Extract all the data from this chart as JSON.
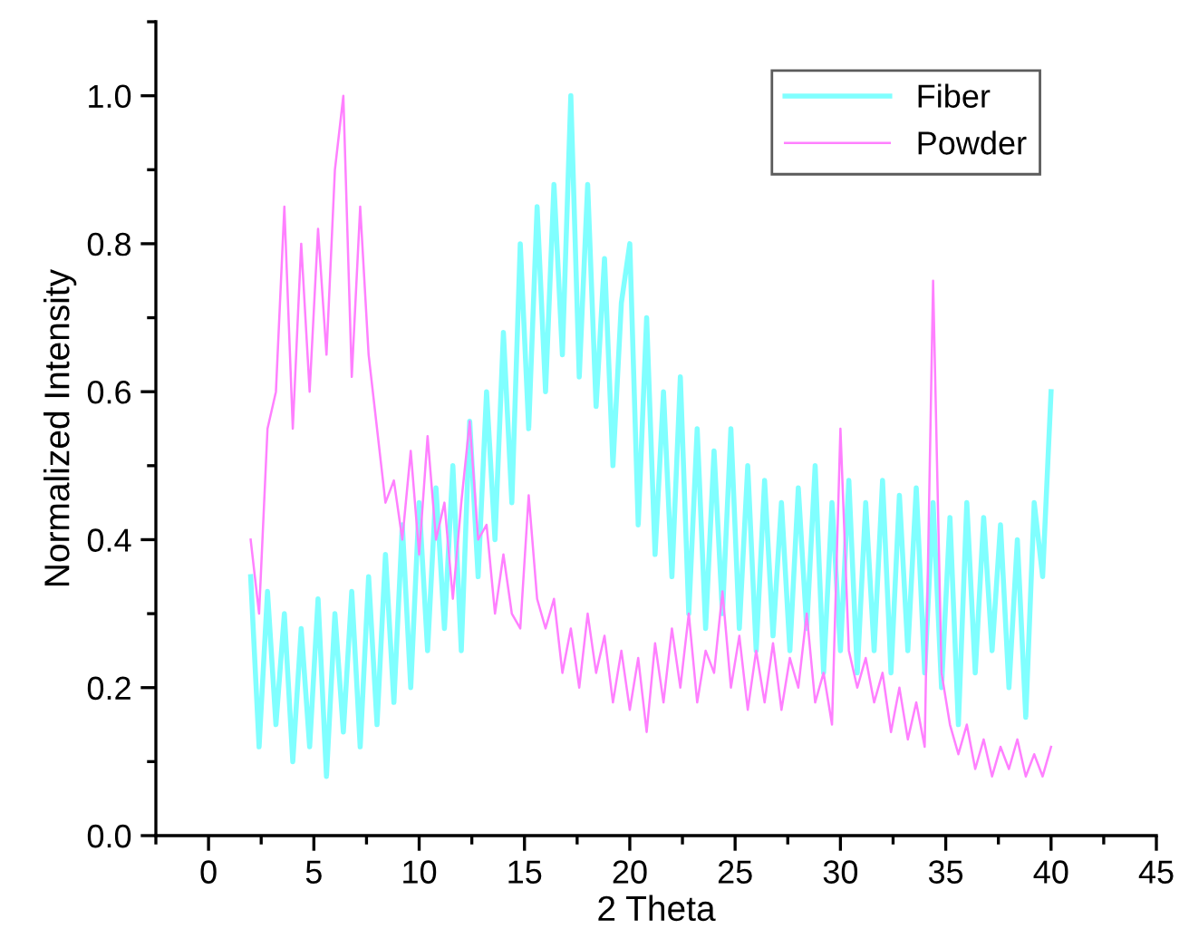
{
  "chart_data": {
    "type": "line",
    "xlabel": "2 Theta",
    "ylabel": "Normalized Intensity",
    "xlim": [
      -2.5,
      45
    ],
    "ylim": [
      0,
      1.1
    ],
    "xticks": [
      {
        "value": -2.5,
        "label": null
      },
      0,
      {
        "value": 2.5,
        "label": null
      },
      5,
      {
        "value": 7.5,
        "label": null
      },
      10,
      {
        "value": 12.5,
        "label": null
      },
      15,
      {
        "value": 17.5,
        "label": null
      },
      20,
      {
        "value": 22.5,
        "label": null
      },
      25,
      {
        "value": 27.5,
        "label": null
      },
      30,
      {
        "value": 32.5,
        "label": null
      },
      35,
      {
        "value": 37.5,
        "label": null
      },
      40,
      {
        "value": 42.5,
        "label": null
      },
      45
    ],
    "yticks": [
      {
        "value": 0,
        "label": "0.0"
      },
      {
        "value": 0.1,
        "label": null
      },
      {
        "value": 0.2,
        "label": "0.2"
      },
      {
        "value": 0.3,
        "label": null
      },
      {
        "value": 0.4,
        "label": "0.4"
      },
      {
        "value": 0.5,
        "label": null
      },
      {
        "value": 0.6,
        "label": "0.6"
      },
      {
        "value": 0.7,
        "label": null
      },
      {
        "value": 0.8,
        "label": "0.8"
      },
      {
        "value": 0.9,
        "label": null
      },
      {
        "value": 1.0,
        "label": "1.0"
      },
      {
        "value": 1.1,
        "label": null
      }
    ],
    "grid": false,
    "legend": "top right",
    "marker": "none",
    "line_style": "solid",
    "x": [
      2.0,
      2.4,
      2.8,
      3.2,
      3.6,
      4.0,
      4.4,
      4.8,
      5.2,
      5.6,
      6.0,
      6.4,
      6.8,
      7.2,
      7.6,
      8.0,
      8.4,
      8.8,
      9.2,
      9.6,
      10.0,
      10.4,
      10.8,
      11.2,
      11.6,
      12.0,
      12.4,
      12.8,
      13.2,
      13.6,
      14.0,
      14.4,
      14.8,
      15.2,
      15.6,
      16.0,
      16.4,
      16.8,
      17.2,
      17.6,
      18.0,
      18.4,
      18.8,
      19.2,
      19.6,
      20.0,
      20.4,
      20.8,
      21.2,
      21.6,
      22.0,
      22.4,
      22.8,
      23.2,
      23.6,
      24.0,
      24.4,
      24.8,
      25.2,
      25.6,
      26.0,
      26.4,
      26.8,
      27.2,
      27.6,
      28.0,
      28.4,
      28.8,
      29.2,
      29.6,
      30.0,
      30.4,
      30.8,
      31.2,
      31.6,
      32.0,
      32.4,
      32.8,
      33.2,
      33.6,
      34.0,
      34.4,
      34.8,
      35.2,
      35.6,
      36.0,
      36.4,
      36.8,
      37.2,
      37.6,
      38.0,
      38.4,
      38.8,
      39.2,
      39.6,
      40.0
    ],
    "series": [
      {
        "name": "Fiber",
        "color": "#80ffff",
        "values": [
          0.35,
          0.12,
          0.33,
          0.15,
          0.3,
          0.1,
          0.28,
          0.12,
          0.32,
          0.08,
          0.3,
          0.14,
          0.33,
          0.12,
          0.35,
          0.15,
          0.38,
          0.18,
          0.42,
          0.2,
          0.45,
          0.25,
          0.47,
          0.28,
          0.5,
          0.25,
          0.56,
          0.35,
          0.6,
          0.4,
          0.68,
          0.45,
          0.8,
          0.55,
          0.85,
          0.6,
          0.88,
          0.65,
          1.0,
          0.62,
          0.88,
          0.58,
          0.78,
          0.5,
          0.72,
          0.8,
          0.42,
          0.7,
          0.38,
          0.6,
          0.35,
          0.62,
          0.3,
          0.55,
          0.28,
          0.52,
          0.3,
          0.55,
          0.28,
          0.5,
          0.25,
          0.48,
          0.27,
          0.45,
          0.25,
          0.47,
          0.28,
          0.5,
          0.22,
          0.45,
          0.25,
          0.48,
          0.22,
          0.45,
          0.25,
          0.48,
          0.22,
          0.46,
          0.25,
          0.47,
          0.22,
          0.45,
          0.2,
          0.43,
          0.15,
          0.45,
          0.22,
          0.43,
          0.25,
          0.42,
          0.2,
          0.4,
          0.16,
          0.45,
          0.35,
          0.6
        ]
      },
      {
        "name": "Powder",
        "color": "#ff80ff",
        "values": [
          0.4,
          0.3,
          0.55,
          0.6,
          0.85,
          0.55,
          0.8,
          0.6,
          0.82,
          0.65,
          0.9,
          1.0,
          0.62,
          0.85,
          0.65,
          0.55,
          0.45,
          0.48,
          0.4,
          0.52,
          0.38,
          0.54,
          0.4,
          0.45,
          0.32,
          0.45,
          0.56,
          0.4,
          0.42,
          0.3,
          0.38,
          0.3,
          0.28,
          0.46,
          0.32,
          0.28,
          0.32,
          0.22,
          0.28,
          0.2,
          0.3,
          0.22,
          0.27,
          0.18,
          0.25,
          0.17,
          0.24,
          0.14,
          0.26,
          0.18,
          0.28,
          0.2,
          0.3,
          0.18,
          0.25,
          0.22,
          0.33,
          0.2,
          0.27,
          0.17,
          0.25,
          0.18,
          0.26,
          0.17,
          0.24,
          0.2,
          0.3,
          0.18,
          0.22,
          0.15,
          0.55,
          0.25,
          0.2,
          0.24,
          0.18,
          0.22,
          0.14,
          0.2,
          0.13,
          0.18,
          0.12,
          0.75,
          0.22,
          0.15,
          0.11,
          0.15,
          0.09,
          0.13,
          0.08,
          0.12,
          0.09,
          0.13,
          0.08,
          0.11,
          0.08,
          0.12
        ]
      }
    ]
  }
}
